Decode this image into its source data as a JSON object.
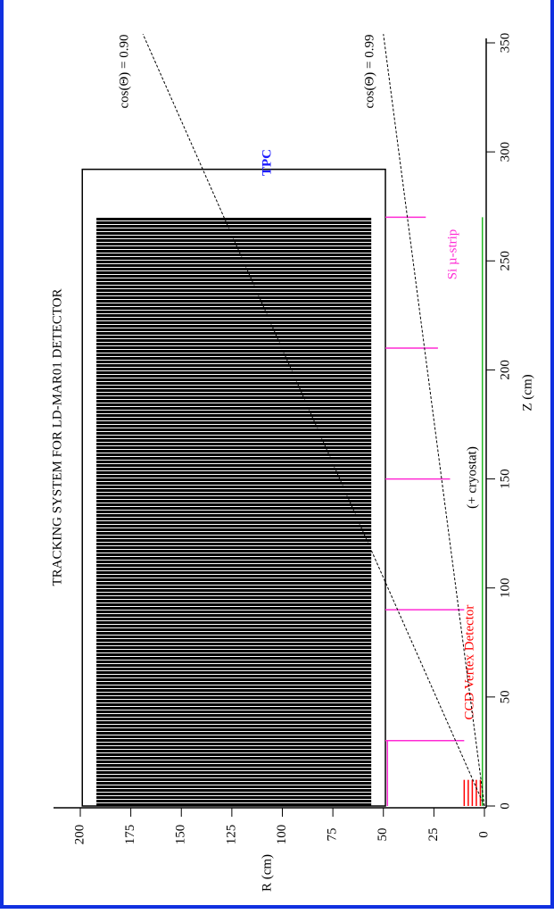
{
  "chart_data": {
    "type": "detector-layout",
    "title": "TRACKING SYSTEM FOR LD-MAR01 DETECTOR",
    "xlabel": "Z (cm)",
    "ylabel": "R (cm)",
    "xlim": [
      0,
      350
    ],
    "ylim": [
      0,
      200
    ],
    "xticks": [
      0,
      50,
      100,
      150,
      200,
      250,
      300,
      350
    ],
    "yticks": [
      0,
      25,
      50,
      75,
      100,
      125,
      150,
      175,
      200
    ],
    "tpc_box": {
      "z": [
        0,
        292
      ],
      "r": [
        49,
        199
      ]
    },
    "tpc": {
      "label": "TPC",
      "color": "#1c1cff",
      "z": [
        0,
        270
      ],
      "r": [
        56,
        192
      ]
    },
    "si_strip": {
      "label": "Si µ-strip",
      "color": "#ff2ad4",
      "z": [
        30,
        90,
        150,
        210,
        270
      ],
      "r_inner": [
        10,
        10,
        17,
        23,
        29
      ],
      "r_outer": 49,
      "barrel_r": 48,
      "barrel_z": 30
    },
    "ccd": {
      "label": "CCD Vertex Detector",
      "color": "#ff0000",
      "z": 12,
      "r": [
        2,
        4,
        6,
        8,
        10
      ]
    },
    "beampipe": {
      "color": "#22bb22",
      "z": 270,
      "r": 1
    },
    "cryostat_label": "(+ cryostat)",
    "cos_lines": [
      {
        "label": "cos(Θ) = 0.90",
        "z_end": 354,
        "r_end": 169
      },
      {
        "label": "cos(Θ) = 0.99",
        "z_end": 354,
        "r_end": 50
      }
    ]
  }
}
